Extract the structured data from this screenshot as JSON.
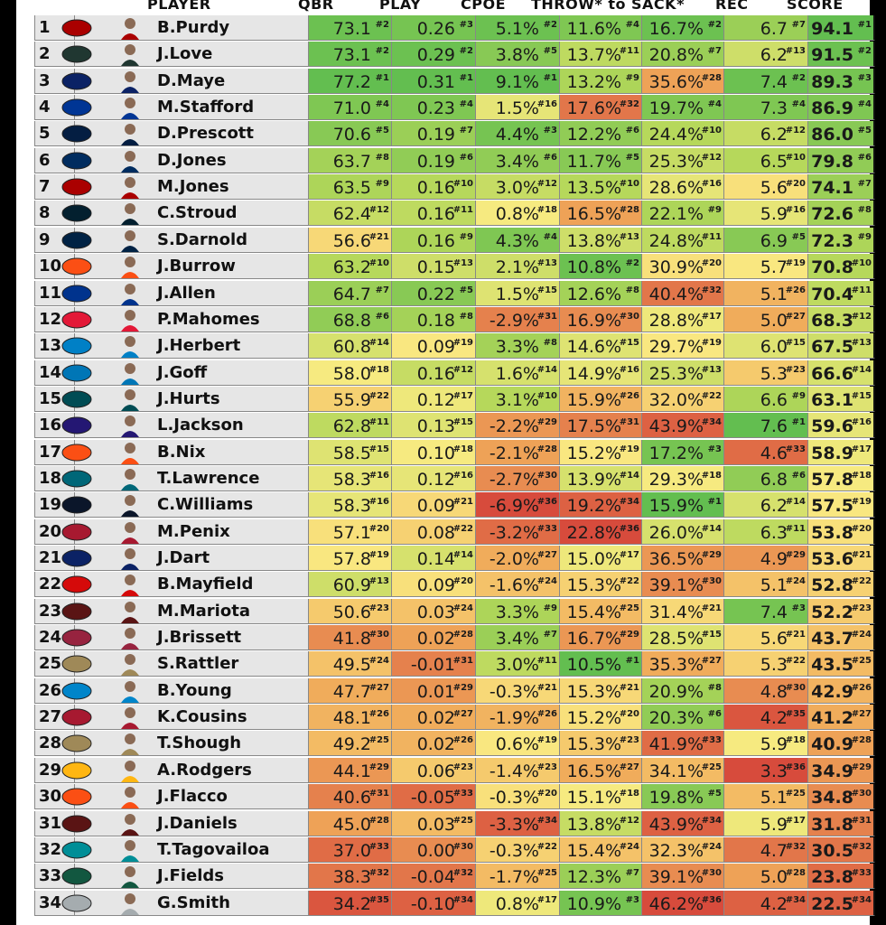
{
  "headers": [
    "PLAYER",
    "QBR",
    "PLAY",
    "CPOE",
    "THROW* to SACK*",
    "REC",
    "SCORE"
  ],
  "team_colors": {
    "SF": "#aa0000",
    "GB": "#203731",
    "NE": "#0b2265",
    "LAR": "#003594",
    "DAL": "#041e42",
    "IND": "#002c5f",
    "HOU": "#03202f",
    "SEA": "#002244",
    "CIN": "#fb4f14",
    "BUF": "#00338d",
    "KC": "#e31837",
    "LAC": "#0080c6",
    "DET": "#0076b6",
    "PHI": "#004c54",
    "BAL": "#241773",
    "DEN": "#fb4f14",
    "JAX": "#006778",
    "CHI": "#0b162a",
    "ATL": "#a71930",
    "NYG": "#0b2265",
    "TB": "#d50a0a",
    "WAS": "#5a1414",
    "ARI": "#97233f",
    "NO": "#9f8958",
    "CAR": "#0085ca",
    "PIT": "#ffb612",
    "MIA": "#008e97",
    "NYJ": "#125740",
    "LV": "#a5acaf"
  },
  "rows": [
    {
      "rank": "1",
      "team": "SF",
      "player": "B.Purdy",
      "qbr": [
        "73.1",
        "#2"
      ],
      "play": [
        "0.26",
        "#3"
      ],
      "cpoe": [
        "5.1%",
        "#2"
      ],
      "throw": [
        "11.6%",
        "#4"
      ],
      "sack": [
        "16.7%",
        "#2"
      ],
      "rec": [
        "6.7",
        "#7"
      ],
      "score": [
        "94.1",
        "#1"
      ]
    },
    {
      "rank": "2",
      "team": "GB",
      "player": "J.Love",
      "qbr": [
        "73.1",
        "#2"
      ],
      "play": [
        "0.29",
        "#2"
      ],
      "cpoe": [
        "3.8%",
        "#5"
      ],
      "throw": [
        "13.7%",
        "#11"
      ],
      "sack": [
        "20.8%",
        "#7"
      ],
      "rec": [
        "6.2",
        "#13"
      ],
      "score": [
        "91.5",
        "#2"
      ]
    },
    {
      "rank": "3",
      "team": "NE",
      "player": "D.Maye",
      "qbr": [
        "77.2",
        "#1"
      ],
      "play": [
        "0.31",
        "#1"
      ],
      "cpoe": [
        "9.1%",
        "#1"
      ],
      "throw": [
        "13.2%",
        "#9"
      ],
      "sack": [
        "35.6%",
        "#28"
      ],
      "rec": [
        "7.4",
        "#2"
      ],
      "score": [
        "89.3",
        "#3"
      ]
    },
    {
      "rank": "4",
      "team": "LAR",
      "player": "M.Stafford",
      "qbr": [
        "71.0",
        "#4"
      ],
      "play": [
        "0.23",
        "#4"
      ],
      "cpoe": [
        "1.5%",
        "#16"
      ],
      "throw": [
        "17.6%",
        "#32"
      ],
      "sack": [
        "19.7%",
        "#4"
      ],
      "rec": [
        "7.3",
        "#4"
      ],
      "score": [
        "86.9",
        "#4"
      ]
    },
    {
      "rank": "5",
      "team": "DAL",
      "player": "D.Prescott",
      "qbr": [
        "70.6",
        "#5"
      ],
      "play": [
        "0.19",
        "#7"
      ],
      "cpoe": [
        "4.4%",
        "#3"
      ],
      "throw": [
        "12.2%",
        "#6"
      ],
      "sack": [
        "24.4%",
        "#10"
      ],
      "rec": [
        "6.2",
        "#12"
      ],
      "score": [
        "86.0",
        "#5"
      ]
    },
    {
      "rank": "6",
      "team": "IND",
      "player": "D.Jones",
      "qbr": [
        "63.7",
        "#8"
      ],
      "play": [
        "0.19",
        "#6"
      ],
      "cpoe": [
        "3.4%",
        "#6"
      ],
      "throw": [
        "11.7%",
        "#5"
      ],
      "sack": [
        "25.3%",
        "#12"
      ],
      "rec": [
        "6.5",
        "#10"
      ],
      "score": [
        "79.8",
        "#6"
      ]
    },
    {
      "rank": "7",
      "team": "SF",
      "player": "M.Jones",
      "qbr": [
        "63.5",
        "#9"
      ],
      "play": [
        "0.16",
        "#10"
      ],
      "cpoe": [
        "3.0%",
        "#12"
      ],
      "throw": [
        "13.5%",
        "#10"
      ],
      "sack": [
        "28.6%",
        "#16"
      ],
      "rec": [
        "5.6",
        "#20"
      ],
      "score": [
        "74.1",
        "#7"
      ]
    },
    {
      "rank": "8",
      "team": "HOU",
      "player": "C.Stroud",
      "qbr": [
        "62.4",
        "#12"
      ],
      "play": [
        "0.16",
        "#11"
      ],
      "cpoe": [
        "0.8%",
        "#18"
      ],
      "throw": [
        "16.5%",
        "#28"
      ],
      "sack": [
        "22.1%",
        "#9"
      ],
      "rec": [
        "5.9",
        "#16"
      ],
      "score": [
        "72.6",
        "#8"
      ]
    },
    {
      "rank": "9",
      "team": "SEA",
      "player": "S.Darnold",
      "qbr": [
        "56.6",
        "#21"
      ],
      "play": [
        "0.16",
        "#9"
      ],
      "cpoe": [
        "4.3%",
        "#4"
      ],
      "throw": [
        "13.8%",
        "#13"
      ],
      "sack": [
        "24.8%",
        "#11"
      ],
      "rec": [
        "6.9",
        "#5"
      ],
      "score": [
        "72.3",
        "#9"
      ]
    },
    {
      "rank": "10",
      "team": "CIN",
      "player": "J.Burrow",
      "qbr": [
        "63.2",
        "#10"
      ],
      "play": [
        "0.15",
        "#13"
      ],
      "cpoe": [
        "2.1%",
        "#13"
      ],
      "throw": [
        "10.8%",
        "#2"
      ],
      "sack": [
        "30.9%",
        "#20"
      ],
      "rec": [
        "5.7",
        "#19"
      ],
      "score": [
        "70.8",
        "#10"
      ]
    },
    {
      "rank": "11",
      "team": "BUF",
      "player": "J.Allen",
      "qbr": [
        "64.7",
        "#7"
      ],
      "play": [
        "0.22",
        "#5"
      ],
      "cpoe": [
        "1.5%",
        "#15"
      ],
      "throw": [
        "12.6%",
        "#8"
      ],
      "sack": [
        "40.4%",
        "#32"
      ],
      "rec": [
        "5.1",
        "#26"
      ],
      "score": [
        "70.4",
        "#11"
      ]
    },
    {
      "rank": "12",
      "team": "KC",
      "player": "P.Mahomes",
      "qbr": [
        "68.8",
        "#6"
      ],
      "play": [
        "0.18",
        "#8"
      ],
      "cpoe": [
        "-2.9%",
        "#31"
      ],
      "throw": [
        "16.9%",
        "#30"
      ],
      "sack": [
        "28.8%",
        "#17"
      ],
      "rec": [
        "5.0",
        "#27"
      ],
      "score": [
        "68.3",
        "#12"
      ]
    },
    {
      "rank": "13",
      "team": "LAC",
      "player": "J.Herbert",
      "qbr": [
        "60.8",
        "#14"
      ],
      "play": [
        "0.09",
        "#19"
      ],
      "cpoe": [
        "3.3%",
        "#8"
      ],
      "throw": [
        "14.6%",
        "#15"
      ],
      "sack": [
        "29.7%",
        "#19"
      ],
      "rec": [
        "6.0",
        "#15"
      ],
      "score": [
        "67.5",
        "#13"
      ]
    },
    {
      "rank": "14",
      "team": "DET",
      "player": "J.Goff",
      "qbr": [
        "58.0",
        "#18"
      ],
      "play": [
        "0.16",
        "#12"
      ],
      "cpoe": [
        "1.6%",
        "#14"
      ],
      "throw": [
        "14.9%",
        "#16"
      ],
      "sack": [
        "25.3%",
        "#13"
      ],
      "rec": [
        "5.3",
        "#23"
      ],
      "score": [
        "66.6",
        "#14"
      ]
    },
    {
      "rank": "15",
      "team": "PHI",
      "player": "J.Hurts",
      "qbr": [
        "55.9",
        "#22"
      ],
      "play": [
        "0.12",
        "#17"
      ],
      "cpoe": [
        "3.1%",
        "#10"
      ],
      "throw": [
        "15.9%",
        "#26"
      ],
      "sack": [
        "32.0%",
        "#22"
      ],
      "rec": [
        "6.6",
        "#9"
      ],
      "score": [
        "63.1",
        "#15"
      ]
    },
    {
      "rank": "16",
      "team": "BAL",
      "player": "L.Jackson",
      "qbr": [
        "62.8",
        "#11"
      ],
      "play": [
        "0.13",
        "#15"
      ],
      "cpoe": [
        "-2.2%",
        "#29"
      ],
      "throw": [
        "17.5%",
        "#31"
      ],
      "sack": [
        "43.9%",
        "#34"
      ],
      "rec": [
        "7.6",
        "#1"
      ],
      "score": [
        "59.6",
        "#16"
      ]
    },
    {
      "rank": "17",
      "team": "DEN",
      "player": "B.Nix",
      "qbr": [
        "58.5",
        "#15"
      ],
      "play": [
        "0.10",
        "#18"
      ],
      "cpoe": [
        "-2.1%",
        "#28"
      ],
      "throw": [
        "15.2%",
        "#19"
      ],
      "sack": [
        "17.2%",
        "#3"
      ],
      "rec": [
        "4.6",
        "#33"
      ],
      "score": [
        "58.9",
        "#17"
      ]
    },
    {
      "rank": "18",
      "team": "JAX",
      "player": "T.Lawrence",
      "qbr": [
        "58.3",
        "#16"
      ],
      "play": [
        "0.12",
        "#16"
      ],
      "cpoe": [
        "-2.7%",
        "#30"
      ],
      "throw": [
        "13.9%",
        "#14"
      ],
      "sack": [
        "29.3%",
        "#18"
      ],
      "rec": [
        "6.8",
        "#6"
      ],
      "score": [
        "57.8",
        "#18"
      ]
    },
    {
      "rank": "19",
      "team": "CHI",
      "player": "C.Williams",
      "qbr": [
        "58.3",
        "#16"
      ],
      "play": [
        "0.09",
        "#21"
      ],
      "cpoe": [
        "-6.9%",
        "#36"
      ],
      "throw": [
        "19.2%",
        "#34"
      ],
      "sack": [
        "15.9%",
        "#1"
      ],
      "rec": [
        "6.2",
        "#14"
      ],
      "score": [
        "57.5",
        "#19"
      ]
    },
    {
      "rank": "20",
      "team": "ATL",
      "player": "M.Penix",
      "qbr": [
        "57.1",
        "#20"
      ],
      "play": [
        "0.08",
        "#22"
      ],
      "cpoe": [
        "-3.2%",
        "#33"
      ],
      "throw": [
        "22.8%",
        "#36"
      ],
      "sack": [
        "26.0%",
        "#14"
      ],
      "rec": [
        "6.3",
        "#11"
      ],
      "score": [
        "53.8",
        "#20"
      ]
    },
    {
      "rank": "21",
      "team": "NYG",
      "player": "J.Dart",
      "qbr": [
        "57.8",
        "#19"
      ],
      "play": [
        "0.14",
        "#14"
      ],
      "cpoe": [
        "-2.0%",
        "#27"
      ],
      "throw": [
        "15.0%",
        "#17"
      ],
      "sack": [
        "36.5%",
        "#29"
      ],
      "rec": [
        "4.9",
        "#29"
      ],
      "score": [
        "53.6",
        "#21"
      ]
    },
    {
      "rank": "22",
      "team": "TB",
      "player": "B.Mayfield",
      "qbr": [
        "60.9",
        "#13"
      ],
      "play": [
        "0.09",
        "#20"
      ],
      "cpoe": [
        "-1.6%",
        "#24"
      ],
      "throw": [
        "15.3%",
        "#22"
      ],
      "sack": [
        "39.1%",
        "#30"
      ],
      "rec": [
        "5.1",
        "#24"
      ],
      "score": [
        "52.8",
        "#22"
      ]
    },
    {
      "rank": "23",
      "team": "WAS",
      "player": "M.Mariota",
      "qbr": [
        "50.6",
        "#23"
      ],
      "play": [
        "0.03",
        "#24"
      ],
      "cpoe": [
        "3.3%",
        "#9"
      ],
      "throw": [
        "15.4%",
        "#25"
      ],
      "sack": [
        "31.4%",
        "#21"
      ],
      "rec": [
        "7.4",
        "#3"
      ],
      "score": [
        "52.2",
        "#23"
      ]
    },
    {
      "rank": "24",
      "team": "ARI",
      "player": "J.Brissett",
      "qbr": [
        "41.8",
        "#30"
      ],
      "play": [
        "0.02",
        "#28"
      ],
      "cpoe": [
        "3.4%",
        "#7"
      ],
      "throw": [
        "16.7%",
        "#29"
      ],
      "sack": [
        "28.5%",
        "#15"
      ],
      "rec": [
        "5.6",
        "#21"
      ],
      "score": [
        "43.7",
        "#24"
      ]
    },
    {
      "rank": "25",
      "team": "NO",
      "player": "S.Rattler",
      "qbr": [
        "49.5",
        "#24"
      ],
      "play": [
        "-0.01",
        "#31"
      ],
      "cpoe": [
        "3.0%",
        "#11"
      ],
      "throw": [
        "10.5%",
        "#1"
      ],
      "sack": [
        "35.3%",
        "#27"
      ],
      "rec": [
        "5.3",
        "#22"
      ],
      "score": [
        "43.5",
        "#25"
      ]
    },
    {
      "rank": "26",
      "team": "CAR",
      "player": "B.Young",
      "qbr": [
        "47.7",
        "#27"
      ],
      "play": [
        "0.01",
        "#29"
      ],
      "cpoe": [
        "-0.3%",
        "#21"
      ],
      "throw": [
        "15.3%",
        "#21"
      ],
      "sack": [
        "20.9%",
        "#8"
      ],
      "rec": [
        "4.8",
        "#30"
      ],
      "score": [
        "42.9",
        "#26"
      ]
    },
    {
      "rank": "27",
      "team": "ATL",
      "player": "K.Cousins",
      "qbr": [
        "48.1",
        "#26"
      ],
      "play": [
        "0.02",
        "#27"
      ],
      "cpoe": [
        "-1.9%",
        "#26"
      ],
      "throw": [
        "15.2%",
        "#20"
      ],
      "sack": [
        "20.3%",
        "#6"
      ],
      "rec": [
        "4.2",
        "#35"
      ],
      "score": [
        "41.2",
        "#27"
      ]
    },
    {
      "rank": "28",
      "team": "NO",
      "player": "T.Shough",
      "qbr": [
        "49.2",
        "#25"
      ],
      "play": [
        "0.02",
        "#26"
      ],
      "cpoe": [
        "0.6%",
        "#19"
      ],
      "throw": [
        "15.3%",
        "#23"
      ],
      "sack": [
        "41.9%",
        "#33"
      ],
      "rec": [
        "5.9",
        "#18"
      ],
      "score": [
        "40.9",
        "#28"
      ]
    },
    {
      "rank": "29",
      "team": "PIT",
      "player": "A.Rodgers",
      "qbr": [
        "44.1",
        "#29"
      ],
      "play": [
        "0.06",
        "#23"
      ],
      "cpoe": [
        "-1.4%",
        "#23"
      ],
      "throw": [
        "16.5%",
        "#27"
      ],
      "sack": [
        "34.1%",
        "#25"
      ],
      "rec": [
        "3.3",
        "#36"
      ],
      "score": [
        "34.9",
        "#29"
      ]
    },
    {
      "rank": "30",
      "team": "CIN",
      "player": "J.Flacco",
      "qbr": [
        "40.6",
        "#31"
      ],
      "play": [
        "-0.05",
        "#33"
      ],
      "cpoe": [
        "-0.3%",
        "#20"
      ],
      "throw": [
        "15.1%",
        "#18"
      ],
      "sack": [
        "19.8%",
        "#5"
      ],
      "rec": [
        "5.1",
        "#25"
      ],
      "score": [
        "34.8",
        "#30"
      ]
    },
    {
      "rank": "31",
      "team": "WAS",
      "player": "J.Daniels",
      "qbr": [
        "45.0",
        "#28"
      ],
      "play": [
        "0.03",
        "#25"
      ],
      "cpoe": [
        "-3.3%",
        "#34"
      ],
      "throw": [
        "13.8%",
        "#12"
      ],
      "sack": [
        "43.9%",
        "#34"
      ],
      "rec": [
        "5.9",
        "#17"
      ],
      "score": [
        "31.8",
        "#31"
      ]
    },
    {
      "rank": "32",
      "team": "MIA",
      "player": "T.Tagovailoa",
      "qbr": [
        "37.0",
        "#33"
      ],
      "play": [
        "0.00",
        "#30"
      ],
      "cpoe": [
        "-0.3%",
        "#22"
      ],
      "throw": [
        "15.4%",
        "#24"
      ],
      "sack": [
        "32.3%",
        "#24"
      ],
      "rec": [
        "4.7",
        "#32"
      ],
      "score": [
        "30.5",
        "#32"
      ]
    },
    {
      "rank": "33",
      "team": "NYJ",
      "player": "J.Fields",
      "qbr": [
        "38.3",
        "#32"
      ],
      "play": [
        "-0.04",
        "#32"
      ],
      "cpoe": [
        "-1.7%",
        "#25"
      ],
      "throw": [
        "12.3%",
        "#7"
      ],
      "sack": [
        "39.1%",
        "#30"
      ],
      "rec": [
        "5.0",
        "#28"
      ],
      "score": [
        "23.8",
        "#33"
      ]
    },
    {
      "rank": "34",
      "team": "LV",
      "player": "G.Smith",
      "qbr": [
        "34.2",
        "#35"
      ],
      "play": [
        "-0.10",
        "#34"
      ],
      "cpoe": [
        "0.8%",
        "#17"
      ],
      "throw": [
        "10.9%",
        "#3"
      ],
      "sack": [
        "46.2%",
        "#36"
      ],
      "rec": [
        "4.2",
        "#34"
      ],
      "score": [
        "22.5",
        "#34"
      ]
    }
  ]
}
